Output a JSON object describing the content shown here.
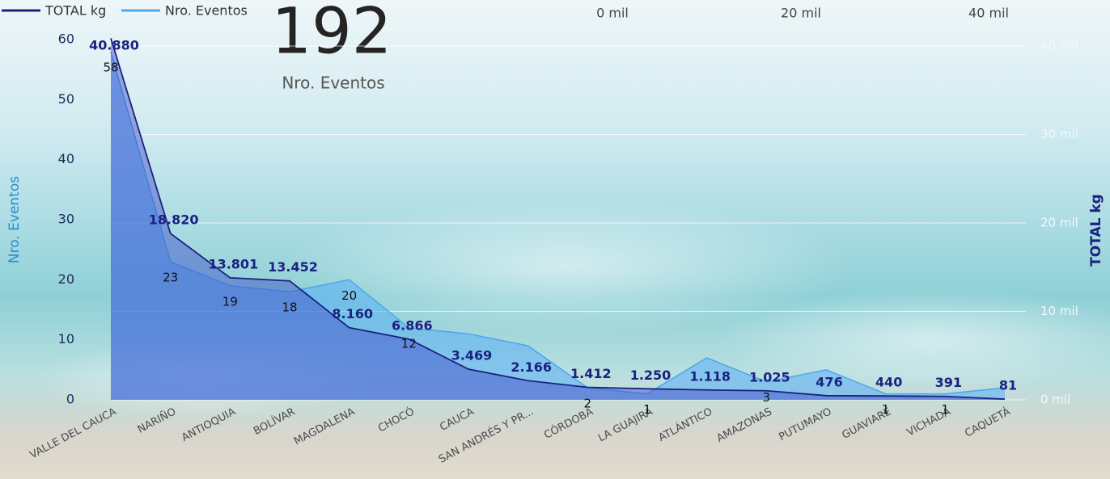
{
  "card": {
    "value": "192",
    "label": "Nro. Eventos"
  },
  "top_axis": {
    "labels": [
      "0 mil",
      "20 mil",
      "40 mil"
    ]
  },
  "chart_data": {
    "type": "area",
    "legend": "top-left",
    "y_label": "Nro. Eventos",
    "y2_label": "TOTAL kg",
    "categories": [
      "VALLE DEL CAUCA",
      "NARIÑO",
      "ANTIOQUIA",
      "BOLÍVAR",
      "MAGDALENA",
      "CHOCÓ",
      "CAUCA",
      "SAN ANDRÉS Y PR...",
      "CÓRDOBA",
      "LA GUAJIRA",
      "ATLÁNTICO",
      "AMAZONAS",
      "PUTUMAYO",
      "GUAVIARE",
      "VICHADA",
      "CAQUETÁ"
    ],
    "series": [
      {
        "name": "TOTAL kg",
        "color": "#1b2180",
        "axis": "y2",
        "values": [
          40880,
          18820,
          13801,
          13452,
          8160,
          6866,
          3469,
          2166,
          1412,
          1250,
          1118,
          1025,
          476,
          440,
          391,
          81
        ],
        "value_labels": [
          "40.880",
          "18.820",
          "13.801",
          "13.452",
          "8.160",
          "6.866",
          "3.469",
          "2.166",
          "1.412",
          "1.250",
          "1.118",
          "1.025",
          "476",
          "440",
          "391",
          "81"
        ]
      },
      {
        "name": "Nro. Eventos",
        "color": "#4aa8ee",
        "values": [
          58,
          23,
          19,
          18,
          20,
          12,
          11,
          9,
          2,
          1,
          7,
          3,
          5,
          1,
          1,
          2
        ],
        "value_labels": [
          "58",
          "23",
          "19",
          "18",
          "20",
          "12",
          null,
          null,
          "2",
          "1",
          null,
          "3",
          null,
          "1",
          "1",
          null
        ]
      }
    ],
    "ylim": [
      0,
      60
    ],
    "yticks": [
      0,
      10,
      20,
      30,
      40,
      50,
      60
    ],
    "y2lim": [
      0,
      40730
    ],
    "y2ticks": [
      {
        "value": 0,
        "label": "0 mil"
      },
      {
        "value": 10000,
        "label": "10 mil"
      },
      {
        "value": 20000,
        "label": "20 mil"
      },
      {
        "value": 30000,
        "label": "30 mil"
      },
      {
        "value": 40000,
        "label": "40 mil"
      }
    ],
    "grid": true
  }
}
